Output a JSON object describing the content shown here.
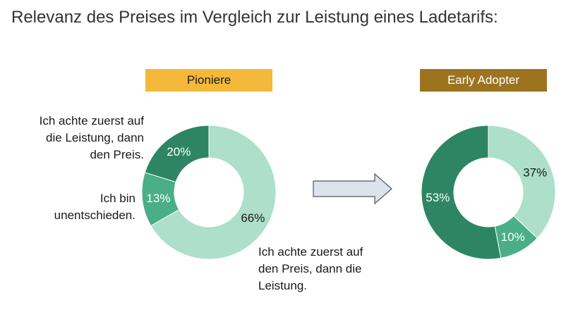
{
  "title": "Relevanz des Preises im Vergleich zur Leistung eines Ladetarifs:",
  "colors": {
    "performance_first": "#2e8565",
    "undecided": "#4aae87",
    "price_first": "#addfcb",
    "badge_pioneers": "#f4b93a",
    "badge_early_adopter": "#9c7420",
    "arrow_fill": "#dde3ea",
    "arrow_stroke": "#555555"
  },
  "legend_labels": {
    "performance_first": "Ich achte zuerst auf die Leistung, dann den Preis.",
    "undecided": "Ich bin unentschieden.",
    "price_first": "Ich achte zuerst auf den Preis, dann die Leistung."
  },
  "chart_data": [
    {
      "type": "pie",
      "title": "Pioniere",
      "categories": [
        "Ich achte zuerst auf den Preis, dann die Leistung.",
        "Ich bin unentschieden.",
        "Ich achte zuerst auf die Leistung, dann den Preis."
      ],
      "values": [
        66,
        13,
        20
      ],
      "labels": [
        "66%",
        "13%",
        "20%"
      ],
      "donut": true
    },
    {
      "type": "pie",
      "title": "Early Adopter",
      "categories": [
        "Ich achte zuerst auf den Preis, dann die Leistung.",
        "Ich bin unentschieden.",
        "Ich achte zuerst auf die Leistung, dann den Preis."
      ],
      "values": [
        37,
        10,
        53
      ],
      "labels": [
        "37%",
        "10%",
        "53%"
      ],
      "donut": true
    }
  ]
}
